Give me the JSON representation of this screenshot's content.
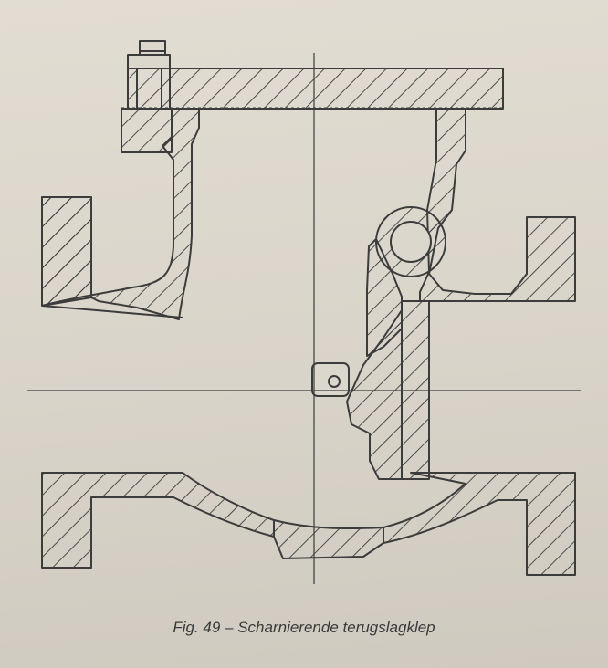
{
  "figure": {
    "caption": "Fig. 49 – Scharnierende terugslagklep"
  },
  "colors": {
    "paper": "#dcd7cc",
    "ink": "#3c3c3c",
    "hatch": "#3c3c3c"
  }
}
